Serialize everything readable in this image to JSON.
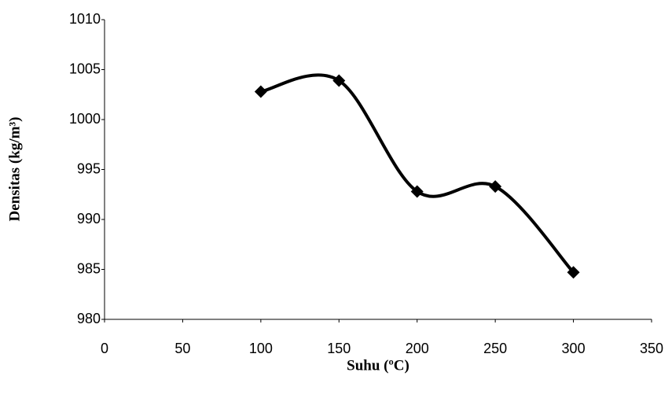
{
  "chart_data": {
    "type": "line",
    "x_label": "Suhu (ºC)",
    "y_label": "Densitas (kg/m³)",
    "series": [
      {
        "color": "#000000",
        "x": [
          100,
          150,
          200,
          250,
          300
        ],
        "values": [
          1002.8,
          1003.9,
          992.8,
          993.3,
          984.7
        ]
      }
    ],
    "xlim": [
      0,
      350
    ],
    "xticks": [
      0,
      50,
      100,
      150,
      200,
      250,
      300,
      350
    ],
    "ylim": [
      980,
      1010
    ],
    "yticks": [
      980,
      985,
      990,
      995,
      1000,
      1005,
      1010
    ],
    "smooth": true,
    "markers": "diamond",
    "grid": false
  }
}
